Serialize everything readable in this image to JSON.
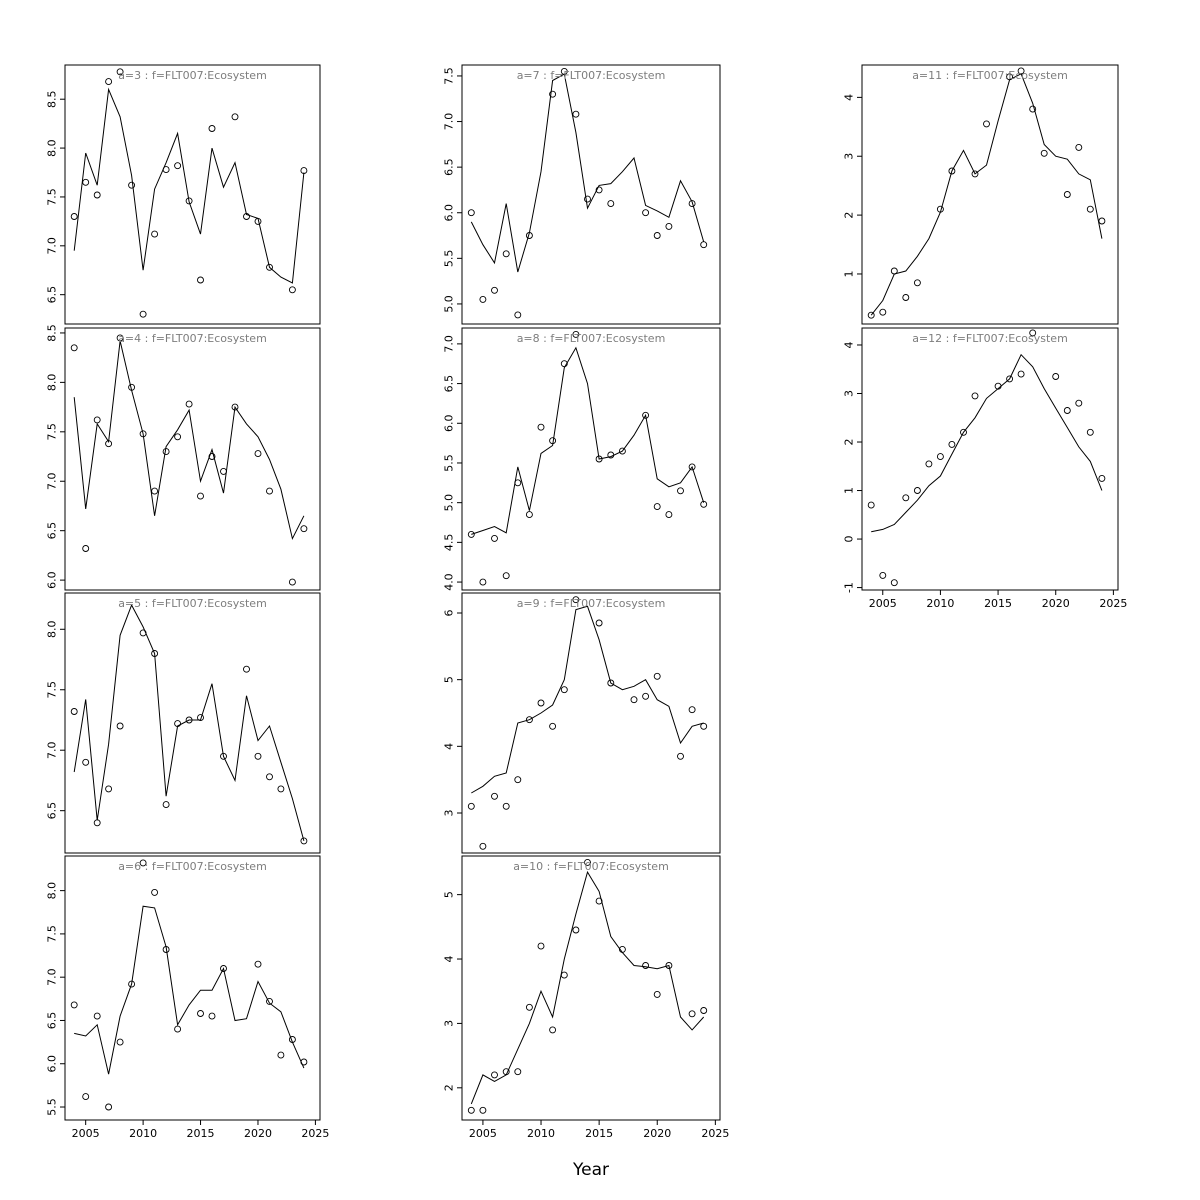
{
  "chart_data": {
    "type": "line",
    "title": "",
    "xlabel": "Year",
    "x": [
      2004,
      2005,
      2006,
      2007,
      2008,
      2009,
      2010,
      2011,
      2012,
      2013,
      2014,
      2015,
      2016,
      2017,
      2018,
      2019,
      2020,
      2021,
      2022,
      2023,
      2024
    ],
    "x_ticks": [
      2005,
      2010,
      2015,
      2020,
      2025
    ],
    "x_range": [
      2003.2,
      2025.4
    ],
    "legend": "off",
    "grid": "off",
    "marker_style": "open-circle",
    "panels": [
      {
        "id": "a3",
        "title": "a=3  :  f=FLT007:Ecosystem",
        "col": 0,
        "row": 0,
        "has_xaxis": false,
        "ylim": [
          6.2,
          8.85
        ],
        "yticks": [
          "6.5",
          "7.0",
          "7.5",
          "8.0",
          "8.5"
        ],
        "line": [
          6.95,
          7.95,
          7.62,
          8.6,
          8.32,
          7.72,
          6.75,
          7.58,
          7.85,
          8.15,
          7.45,
          7.12,
          8.0,
          7.6,
          7.85,
          7.32,
          7.28,
          6.78,
          6.68,
          6.62,
          7.75
        ],
        "points": [
          7.3,
          7.65,
          7.52,
          8.68,
          8.78,
          7.62,
          6.3,
          7.12,
          7.78,
          7.82,
          7.46,
          6.65,
          8.2,
          null,
          8.32,
          7.3,
          7.25,
          6.78,
          null,
          6.55,
          7.77
        ]
      },
      {
        "id": "a4",
        "title": "a=4  :  f=FLT007:Ecosystem",
        "col": 0,
        "row": 1,
        "has_xaxis": false,
        "ylim": [
          5.9,
          8.55
        ],
        "yticks": [
          "6.0",
          "6.5",
          "7.0",
          "7.5",
          "8.0",
          "8.5"
        ],
        "line": [
          7.85,
          6.72,
          7.58,
          7.4,
          8.42,
          7.92,
          7.48,
          6.65,
          7.35,
          7.52,
          7.72,
          7.0,
          7.32,
          6.88,
          7.75,
          7.58,
          7.45,
          7.22,
          6.92,
          6.42,
          6.65
        ],
        "points": [
          8.35,
          6.32,
          7.62,
          7.38,
          8.45,
          7.95,
          7.48,
          6.9,
          7.3,
          7.45,
          7.78,
          6.85,
          7.25,
          7.1,
          7.75,
          null,
          7.28,
          6.9,
          null,
          5.98,
          6.52
        ]
      },
      {
        "id": "a5",
        "title": "a=5  :  f=FLT007:Ecosystem",
        "col": 0,
        "row": 2,
        "has_xaxis": false,
        "ylim": [
          6.15,
          8.3
        ],
        "yticks": [
          "6.5",
          "7.0",
          "7.5",
          "8.0"
        ],
        "line": [
          6.82,
          7.42,
          6.42,
          7.05,
          7.95,
          8.2,
          8.02,
          7.8,
          6.62,
          7.2,
          7.25,
          7.25,
          7.55,
          6.95,
          6.75,
          7.45,
          7.08,
          7.2,
          6.9,
          6.6,
          6.25
        ],
        "points": [
          7.32,
          6.9,
          6.4,
          6.68,
          7.2,
          null,
          7.97,
          7.8,
          6.55,
          7.22,
          7.25,
          7.27,
          null,
          6.95,
          null,
          7.67,
          6.95,
          6.78,
          6.68,
          null,
          6.25
        ]
      },
      {
        "id": "a6",
        "title": "a=6  :  f=FLT007:Ecosystem",
        "col": 0,
        "row": 3,
        "has_xaxis": true,
        "ylim": [
          5.35,
          8.4
        ],
        "yticks": [
          "5.5",
          "6.0",
          "6.5",
          "7.0",
          "7.5",
          "8.0"
        ],
        "line": [
          6.35,
          6.32,
          6.45,
          5.88,
          6.55,
          6.92,
          7.82,
          7.8,
          7.35,
          6.45,
          6.68,
          6.85,
          6.85,
          7.1,
          6.5,
          6.52,
          6.95,
          6.7,
          6.6,
          6.25,
          5.95
        ],
        "points": [
          6.68,
          5.62,
          6.55,
          5.5,
          6.25,
          6.92,
          8.32,
          7.98,
          7.32,
          6.4,
          null,
          6.58,
          6.55,
          7.1,
          null,
          null,
          7.15,
          6.72,
          6.1,
          6.28,
          6.02
        ]
      },
      {
        "id": "a7",
        "title": "a=7  :  f=FLT007:Ecosystem",
        "col": 1,
        "row": 0,
        "has_xaxis": false,
        "ylim": [
          4.78,
          7.62
        ],
        "yticks": [
          "5.0",
          "5.5",
          "6.0",
          "6.5",
          "7.0",
          "7.5"
        ],
        "line": [
          5.9,
          5.65,
          5.45,
          6.1,
          5.35,
          5.78,
          6.45,
          7.45,
          7.52,
          6.88,
          6.05,
          6.3,
          6.32,
          6.45,
          6.6,
          6.08,
          6.02,
          5.95,
          6.35,
          6.12,
          5.68
        ],
        "points": [
          6.0,
          5.05,
          5.15,
          5.55,
          4.88,
          5.75,
          null,
          7.3,
          7.55,
          7.08,
          6.15,
          6.25,
          6.1,
          null,
          null,
          6.0,
          5.75,
          5.85,
          null,
          6.1,
          5.65
        ]
      },
      {
        "id": "a8",
        "title": "a=8  :  f=FLT007:Ecosystem",
        "col": 1,
        "row": 1,
        "has_xaxis": false,
        "ylim": [
          3.9,
          7.2
        ],
        "yticks": [
          "4.0",
          "4.5",
          "5.0",
          "5.5",
          "6.0",
          "6.5",
          "7.0"
        ],
        "line": [
          4.6,
          4.65,
          4.7,
          4.62,
          5.45,
          4.9,
          5.62,
          5.72,
          6.7,
          6.95,
          6.5,
          5.55,
          5.58,
          5.65,
          5.85,
          6.1,
          5.3,
          5.2,
          5.25,
          5.45,
          5.0
        ],
        "points": [
          4.6,
          4.0,
          4.55,
          4.08,
          5.25,
          4.85,
          5.95,
          5.78,
          6.75,
          7.12,
          null,
          5.55,
          5.6,
          5.65,
          null,
          6.1,
          4.95,
          4.85,
          5.15,
          5.45,
          4.98
        ]
      },
      {
        "id": "a9",
        "title": "a=9  :  f=FLT007:Ecosystem",
        "col": 1,
        "row": 2,
        "has_xaxis": false,
        "ylim": [
          2.4,
          6.3
        ],
        "yticks": [
          "3",
          "4",
          "5",
          "6"
        ],
        "line": [
          3.3,
          3.4,
          3.55,
          3.6,
          4.35,
          4.4,
          4.5,
          4.62,
          5.0,
          6.05,
          6.1,
          5.6,
          4.95,
          4.85,
          4.9,
          5.0,
          4.7,
          4.6,
          4.05,
          4.3,
          4.35
        ],
        "points": [
          3.1,
          2.5,
          3.25,
          3.1,
          3.5,
          4.4,
          4.65,
          4.3,
          4.85,
          6.2,
          null,
          5.85,
          4.95,
          null,
          4.7,
          4.75,
          5.05,
          null,
          3.85,
          4.55,
          4.3
        ]
      },
      {
        "id": "a10",
        "title": "a=10  :  f=FLT007:Ecosystem",
        "col": 1,
        "row": 3,
        "has_xaxis": true,
        "ylim": [
          1.5,
          5.6
        ],
        "yticks": [
          "2",
          "3",
          "4",
          "5"
        ],
        "line": [
          1.75,
          2.2,
          2.1,
          2.2,
          2.6,
          3.0,
          3.5,
          3.1,
          4.0,
          4.7,
          5.35,
          5.05,
          4.35,
          4.1,
          3.9,
          3.88,
          3.85,
          3.9,
          3.1,
          2.9,
          3.1
        ],
        "points": [
          1.65,
          1.65,
          2.2,
          2.25,
          2.25,
          3.25,
          4.2,
          2.9,
          3.75,
          4.45,
          5.5,
          4.9,
          null,
          4.15,
          null,
          3.9,
          3.45,
          3.9,
          null,
          3.15,
          3.2
        ]
      },
      {
        "id": "a11",
        "title": "a=11  :  f=FLT007:Ecosystem",
        "col": 2,
        "row": 0,
        "has_xaxis": false,
        "ylim": [
          0.15,
          4.55
        ],
        "yticks": [
          "1",
          "2",
          "3",
          "4"
        ],
        "line": [
          0.3,
          0.55,
          1.0,
          1.05,
          1.3,
          1.6,
          2.05,
          2.75,
          3.1,
          2.7,
          2.85,
          3.6,
          4.3,
          4.4,
          3.9,
          3.2,
          3.0,
          2.95,
          2.7,
          2.6,
          1.6
        ],
        "points": [
          0.3,
          0.35,
          1.05,
          0.6,
          0.85,
          null,
          2.1,
          2.75,
          null,
          2.7,
          3.55,
          null,
          4.35,
          4.45,
          3.8,
          3.05,
          null,
          2.35,
          3.15,
          2.1,
          1.9
        ]
      },
      {
        "id": "a12",
        "title": "a=12  :  f=FLT007:Ecosystem",
        "col": 2,
        "row": 1,
        "has_xaxis": true,
        "ylim": [
          -1.05,
          4.35
        ],
        "yticks": [
          "-1",
          "0",
          "1",
          "2",
          "3",
          "4"
        ],
        "line": [
          0.15,
          0.2,
          0.3,
          0.55,
          0.8,
          1.1,
          1.3,
          1.75,
          2.2,
          2.5,
          2.9,
          3.1,
          3.3,
          3.8,
          3.55,
          3.1,
          2.7,
          2.3,
          1.9,
          1.6,
          1.0
        ],
        "points": [
          0.7,
          -0.75,
          -0.9,
          0.85,
          1.0,
          1.55,
          1.7,
          1.95,
          2.2,
          2.95,
          null,
          3.15,
          3.3,
          3.4,
          4.25,
          null,
          3.35,
          2.65,
          2.8,
          2.2,
          1.25
        ]
      }
    ]
  }
}
